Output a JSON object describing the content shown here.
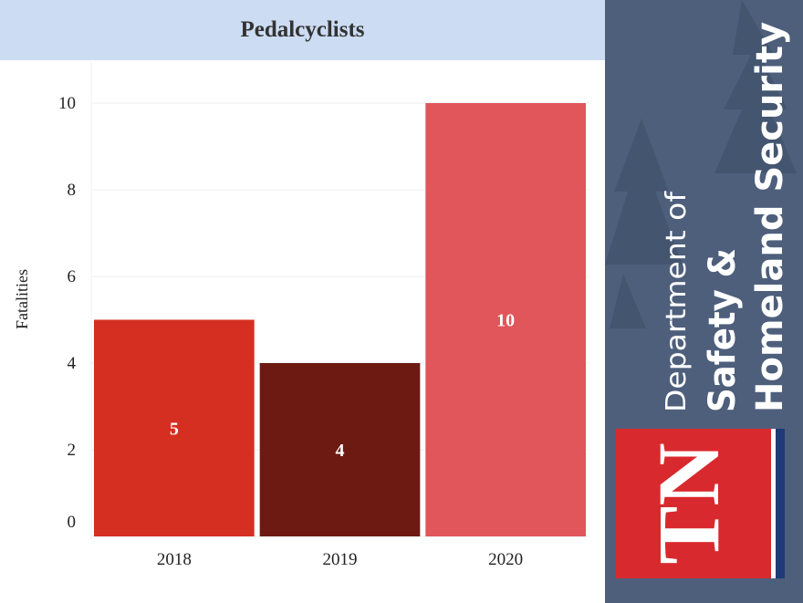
{
  "chart_data": {
    "type": "bar",
    "title": "Pedalcyclists",
    "ylabel": "Fatalities",
    "xlabel": "",
    "categories": [
      "2018",
      "2019",
      "2020"
    ],
    "values": [
      5,
      4,
      10
    ],
    "data_labels": [
      "5",
      "4",
      "10"
    ],
    "ylim": [
      0,
      10
    ],
    "yticks": [
      0,
      2,
      4,
      6,
      8,
      10
    ],
    "ytick_labels": [
      "0",
      "2",
      "4",
      "6",
      "8",
      "10"
    ],
    "grid": true,
    "colors": [
      "#d52f21",
      "#6c1a12",
      "#e0565a"
    ]
  },
  "brand": {
    "line1": "Department of",
    "line2": "Safety &",
    "line3": "Homeland Security",
    "logo_text": "TN",
    "logo_color": "#d82a2e",
    "stripe_color": "#1e3a78",
    "panel_color": "#4e5f7c"
  }
}
